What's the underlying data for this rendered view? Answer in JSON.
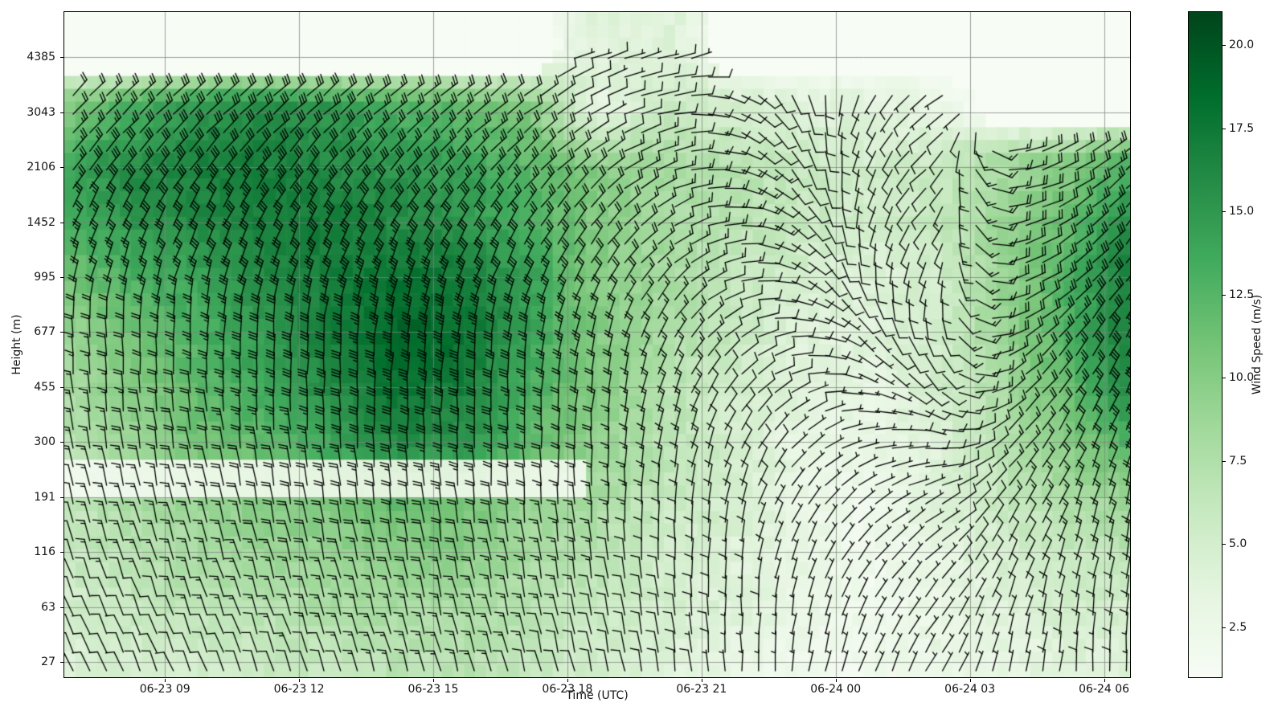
{
  "chart_data": {
    "type": "heatmap",
    "overlay": "wind-barbs",
    "title": "",
    "xlabel": "Time (UTC)",
    "ylabel": "Height (m)",
    "x_tick_labels": [
      "06-23 09",
      "06-23 12",
      "06-23 15",
      "06-23 18",
      "06-23 21",
      "06-24 00",
      "06-24 03",
      "06-24 06"
    ],
    "x_tick_hours_from_start": [
      2.25,
      5.25,
      8.25,
      11.25,
      14.25,
      17.25,
      20.25,
      23.25
    ],
    "x_range": [
      "06-23 06:45",
      "06-24 06:35"
    ],
    "x_span_hours": 23.833,
    "y_tick_labels": [
      "27",
      "63",
      "116",
      "191",
      "300",
      "455",
      "677",
      "995",
      "1452",
      "2106",
      "3043",
      "4385"
    ],
    "y_gates_m": [
      27,
      63,
      116,
      191,
      300,
      455,
      677,
      995,
      1452,
      2106,
      3043,
      4385
    ],
    "grid_on": true,
    "colorbar": {
      "label": "Wind Speed (m/s)",
      "tick_labels": [
        "2.5",
        "5.0",
        "7.5",
        "10.0",
        "12.5",
        "15.0",
        "17.5",
        "20.0"
      ],
      "tick_values": [
        2.5,
        5.0,
        7.5,
        10.0,
        12.5,
        15.0,
        17.5,
        20.0
      ],
      "vmin": 1,
      "vmax": 21,
      "colormap": "Greens",
      "colormap_stops": [
        "#f7fcf5",
        "#e5f5e0",
        "#c7e9c0",
        "#a1d99b",
        "#74c476",
        "#41ab5d",
        "#238b45",
        "#006d2c",
        "#00441b"
      ]
    },
    "barb_convention": "feathered end points upwind; half barb = 5 kt, full barb = 10 kt",
    "grid": {
      "times_h": [
        0,
        1.5,
        3,
        4.5,
        6,
        7.5,
        9,
        10.5,
        12,
        13.5,
        15,
        16.5,
        18,
        19.5,
        21,
        22.5,
        23.83
      ],
      "heights_m": [
        27,
        63,
        116,
        191,
        300,
        455,
        677,
        995,
        1452,
        2106,
        3043,
        4385
      ],
      "speed_ms": [
        [
          4,
          5,
          5,
          6,
          6,
          7,
          7,
          6,
          5,
          4,
          3,
          2,
          2,
          3,
          3,
          4,
          4
        ],
        [
          5,
          6,
          7,
          7,
          8,
          8,
          8,
          7,
          6,
          5,
          4,
          3,
          2,
          3,
          4,
          5,
          5
        ],
        [
          6,
          7,
          8,
          9,
          9,
          10,
          10,
          8,
          7,
          5,
          4,
          3,
          2,
          3,
          5,
          6,
          7
        ],
        [
          6,
          8,
          9,
          10,
          11,
          12,
          11,
          9,
          8,
          6,
          5,
          3,
          2,
          4,
          6,
          8,
          9
        ],
        [
          7,
          9,
          11,
          12,
          14,
          16,
          15,
          12,
          9,
          7,
          5,
          3,
          3,
          4,
          7,
          10,
          13
        ],
        [
          8,
          10,
          12,
          14,
          16,
          18,
          17,
          13,
          10,
          7,
          5,
          4,
          3,
          5,
          8,
          12,
          16
        ],
        [
          9,
          11,
          13,
          15,
          17,
          19,
          18,
          14,
          10,
          8,
          6,
          4,
          4,
          5,
          9,
          13,
          17
        ],
        [
          11,
          13,
          14,
          16,
          17,
          18,
          17,
          14,
          10,
          8,
          6,
          5,
          4,
          5,
          9,
          13,
          17
        ],
        [
          13,
          15,
          16,
          17,
          17,
          16,
          15,
          13,
          10,
          8,
          7,
          6,
          5,
          6,
          9,
          12,
          16
        ],
        [
          14,
          16,
          17,
          17,
          16,
          15,
          14,
          12,
          10,
          8,
          7,
          6,
          5,
          6,
          8,
          10,
          13
        ],
        [
          10,
          13,
          15,
          16,
          15,
          13,
          12,
          10,
          3,
          6,
          5,
          4,
          4,
          3,
          null,
          null,
          null
        ],
        [
          null,
          null,
          null,
          null,
          null,
          null,
          null,
          null,
          4,
          4,
          null,
          null,
          null,
          null,
          null,
          null,
          null
        ]
      ],
      "direction_from_deg": [
        [
          335,
          336,
          338,
          340,
          342,
          344,
          345,
          346,
          348,
          352,
          358,
          368,
          380,
          390,
          372,
          365,
          360
        ],
        [
          338,
          339,
          340,
          342,
          344,
          346,
          347,
          348,
          350,
          354,
          360,
          372,
          388,
          398,
          380,
          370,
          365
        ],
        [
          342,
          343,
          344,
          346,
          348,
          350,
          351,
          352,
          354,
          358,
          366,
          382,
          400,
          410,
          388,
          376,
          370
        ],
        [
          346,
          347,
          348,
          350,
          352,
          354,
          355,
          356,
          358,
          364,
          375,
          395,
          418,
          425,
          395,
          382,
          375
        ],
        [
          350,
          351,
          352,
          354,
          356,
          358,
          359,
          360,
          362,
          370,
          385,
          410,
          440,
          455,
          405,
          388,
          380
        ],
        [
          355,
          356,
          357,
          358,
          360,
          362,
          363,
          364,
          368,
          380,
          398,
          430,
          470,
          495,
          415,
          395,
          385
        ],
        [
          360,
          361,
          362,
          363,
          365,
          367,
          368,
          370,
          375,
          390,
          415,
          455,
          500,
          530,
          425,
          400,
          390
        ],
        [
          375,
          376,
          377,
          378,
          379,
          380,
          381,
          383,
          390,
          405,
          435,
          480,
          530,
          560,
          435,
          408,
          396
        ],
        [
          385,
          386,
          387,
          388,
          389,
          390,
          391,
          394,
          400,
          418,
          450,
          495,
          550,
          580,
          440,
          415,
          402
        ],
        [
          395,
          396,
          397,
          398,
          399,
          400,
          401,
          404,
          412,
          430,
          465,
          510,
          560,
          590,
          445,
          420,
          408
        ],
        [
          405,
          406,
          407,
          408,
          409,
          410,
          411,
          414,
          422,
          440,
          475,
          520,
          565,
          595,
          null,
          null,
          null
        ],
        [
          null,
          null,
          null,
          null,
          null,
          null,
          null,
          null,
          430,
          435,
          null,
          null,
          null,
          null,
          null,
          null,
          null
        ]
      ],
      "low_speed_gap_band": {
        "gate_index_range": [
          3.05,
          3.6
        ],
        "t_range_h": [
          0,
          11.7
        ]
      }
    }
  }
}
